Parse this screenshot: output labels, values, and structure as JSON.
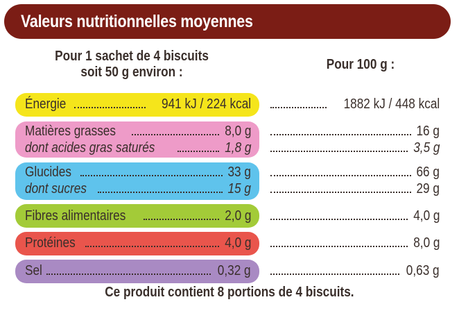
{
  "title": "Valeurs nutritionnelles moyennes",
  "header_left_line1": "Pour 1 sachet de 4 biscuits",
  "header_left_line2": "soit 50 g environ :",
  "header_right": "Pour 100 g :",
  "rows": [
    {
      "label": "Énergie",
      "portion": "941 kJ / 224 kcal",
      "per100": "1882 kJ / 448 kcal",
      "color": "#f5e51b"
    },
    {
      "label": "Matières grasses",
      "portion": "8,0 g",
      "per100": "16 g",
      "color": "#ee9bc8",
      "sub_label": "dont acides gras saturés",
      "sub_portion": "1,8 g",
      "sub_per100": "3,5 g"
    },
    {
      "label": "Glucides",
      "portion": "33 g",
      "per100": "66 g",
      "color": "#5fc3ec",
      "sub_label": "dont sucres",
      "sub_portion": "15 g",
      "sub_per100": "29 g"
    },
    {
      "label": "Fibres alimentaires",
      "portion": "2,0 g",
      "per100": "4,0 g",
      "color": "#a3cb38"
    },
    {
      "label": "Protéines",
      "portion": "4,0 g",
      "per100": "8,0 g",
      "color": "#e9554c"
    },
    {
      "label": "Sel",
      "portion": "0,32 g",
      "per100": "0,63 g",
      "color": "#a98ac3"
    }
  ],
  "footer": "Ce produit contient 8 portions de 4 biscuits."
}
